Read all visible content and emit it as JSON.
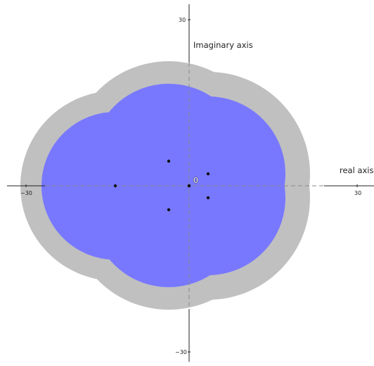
{
  "axes": {
    "x_title": "real axis",
    "y_title": "Imaginary axis",
    "x_ticks": [
      {
        "value": -30,
        "label": "−30"
      },
      {
        "value": 30,
        "label": "30"
      }
    ],
    "y_ticks": [
      {
        "value": 30,
        "label": "30"
      },
      {
        "value": -30,
        "label": "−30"
      }
    ],
    "origin_label": "0",
    "range": [
      -30,
      30
    ],
    "grid": false
  },
  "colors": {
    "outer_region": "#c0c0c0",
    "inner_region": "#7878ff",
    "points": "#111111",
    "axis": "#222222",
    "axis_dashed": "#8a8a8a"
  },
  "regions": {
    "outer": "gray union of discs",
    "inner": "blue union of discs"
  }
}
